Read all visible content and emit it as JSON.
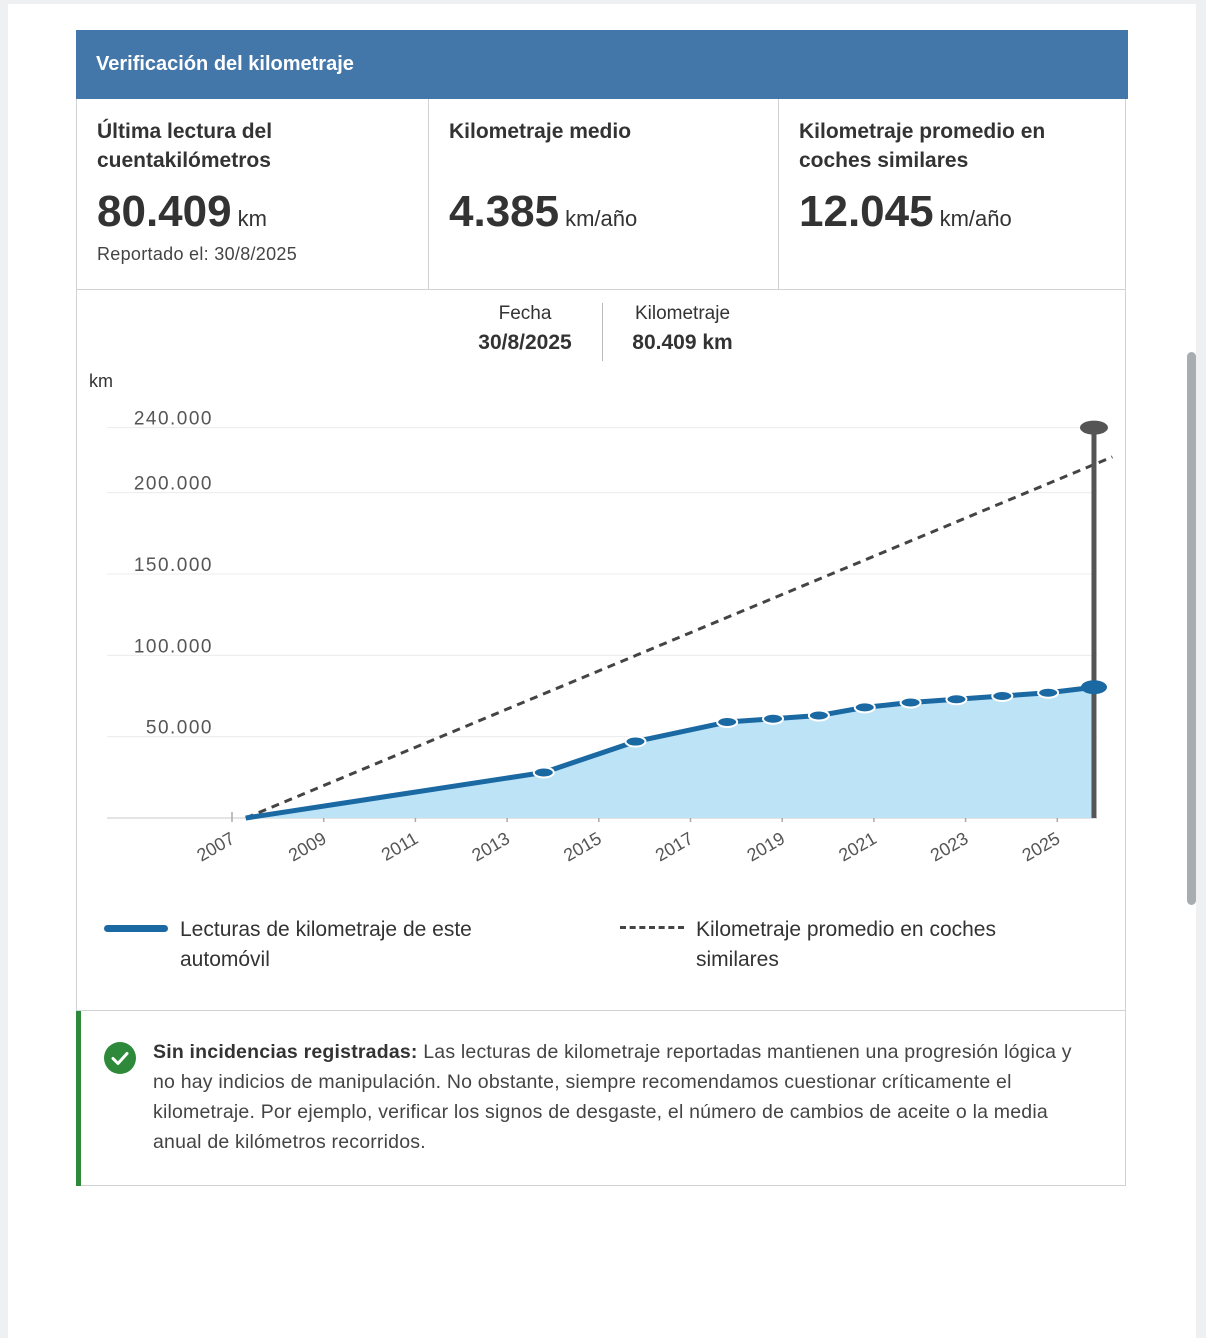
{
  "header": {
    "title": "Verificación del kilometraje"
  },
  "stats": [
    {
      "title": "Última lectura del cuentakilómetros",
      "value": "80.409",
      "unit": "km",
      "note": "Reportado el: 30/8/2025"
    },
    {
      "title": "Kilometraje medio",
      "value": "4.385",
      "unit": "km/año"
    },
    {
      "title": "Kilometraje promedio en coches similares",
      "value": "12.045",
      "unit": "km/año"
    }
  ],
  "tooltip": {
    "date_label": "Fecha",
    "date_value": "30/8/2025",
    "km_label": "Kilometraje",
    "km_value": "80.409 km"
  },
  "legend": {
    "own": "Lecturas de kilometraje de este automóvil",
    "similar": "Kilometraje promedio en coches similares"
  },
  "notice": {
    "bold": "Sin incidencias registradas:",
    "text": " Las lecturas de kilometraje reportadas mantienen una progresión lógica y no hay indicios de manipulación. No obstante, siempre recomendamos cuestionar críticamente el kilometraje. Por ejemplo, verificar los signos de desgaste, el número de cambios de aceite o la media anual de kilómetros recorridos."
  },
  "colors": {
    "header": "#4477a9",
    "line": "#1a69a3",
    "area": "#bde3f6",
    "ok": "#2e8a3a"
  },
  "chart_data": {
    "type": "area",
    "ylabel": "km",
    "ylim": [
      0,
      240000
    ],
    "yticks": [
      50000,
      100000,
      150000,
      200000,
      240000
    ],
    "ytick_labels": [
      "50.000",
      "100.000",
      "150.000",
      "200.000",
      "240.000"
    ],
    "xlim": [
      2007,
      2026.4
    ],
    "xticks": [
      2007,
      2009,
      2011,
      2013,
      2015,
      2017,
      2019,
      2021,
      2023,
      2025
    ],
    "xtick_labels": [
      "2007",
      "2009",
      "2011",
      "2013",
      "2015",
      "2017",
      "2019",
      "2021",
      "2023",
      "2025"
    ],
    "series": [
      {
        "name": "Lecturas de kilometraje de este automóvil",
        "style": "solid",
        "x": [
          2007.3,
          2013.8,
          2015.8,
          2017.8,
          2018.8,
          2019.8,
          2020.8,
          2021.8,
          2022.8,
          2023.8,
          2024.8,
          2025.8
        ],
        "y": [
          0,
          28000,
          47000,
          59000,
          61000,
          63000,
          68000,
          71000,
          73000,
          75000,
          77000,
          80409
        ],
        "markers": [
          false,
          true,
          true,
          true,
          true,
          true,
          true,
          true,
          true,
          true,
          true,
          true
        ]
      },
      {
        "name": "Kilometraje promedio en coches similares",
        "style": "dashed",
        "x": [
          2007.3,
          2026.2
        ],
        "y": [
          0,
          222000
        ]
      }
    ],
    "cursor": {
      "x": 2025.8,
      "ymax": 240000
    }
  }
}
